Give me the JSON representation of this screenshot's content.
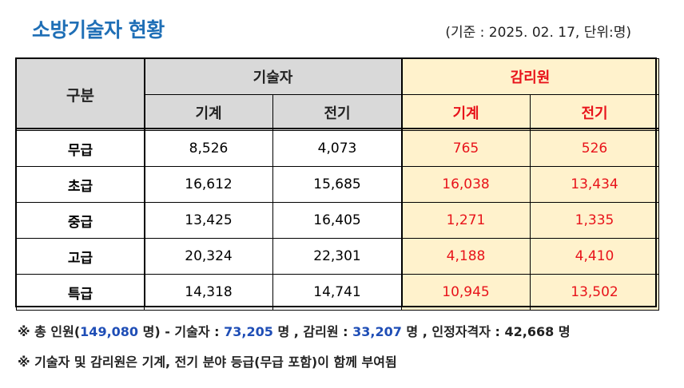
{
  "title": "소방기술자 현황",
  "basis": "(기준 : 2025. 02. 17, 단위:명)",
  "table": {
    "category_header": "구분",
    "group_tech": "기술자",
    "group_sup": "감리원",
    "sub_headers": [
      "기계",
      "전기",
      "기계",
      "전기"
    ],
    "rows": [
      {
        "label": "무급",
        "values": [
          "8,526",
          "4,073",
          "765",
          "526"
        ]
      },
      {
        "label": "초급",
        "values": [
          "16,612",
          "15,685",
          "16,038",
          "13,434"
        ]
      },
      {
        "label": "중급",
        "values": [
          "13,425",
          "16,405",
          "1,271",
          "1,335"
        ]
      },
      {
        "label": "고급",
        "values": [
          "20,324",
          "22,301",
          "4,188",
          "4,410"
        ]
      },
      {
        "label": "특급",
        "values": [
          "14,318",
          "14,741",
          "10,945",
          "13,502"
        ]
      }
    ]
  },
  "note1": {
    "prefix": "※ 총 인원(",
    "total": "149,080",
    "after_total": " 명) - 기술자 : ",
    "tech": "73,205",
    "after_tech": " 명 , 감리원 : ",
    "sup": "33,207",
    "after_sup": " 명 , 인정자격자 : 42,668 명"
  },
  "note2": "※ 기술자 및 감리원은 기계, 전기 분야 등급(무급 포함)이 함께 부여됨",
  "colors": {
    "title": "#1f6fb6",
    "header_gray": "#d9d9d9",
    "supervisor_bg": "#fff2cc",
    "supervisor_text": "#e8131a",
    "note_blue": "#1f4eb6"
  }
}
